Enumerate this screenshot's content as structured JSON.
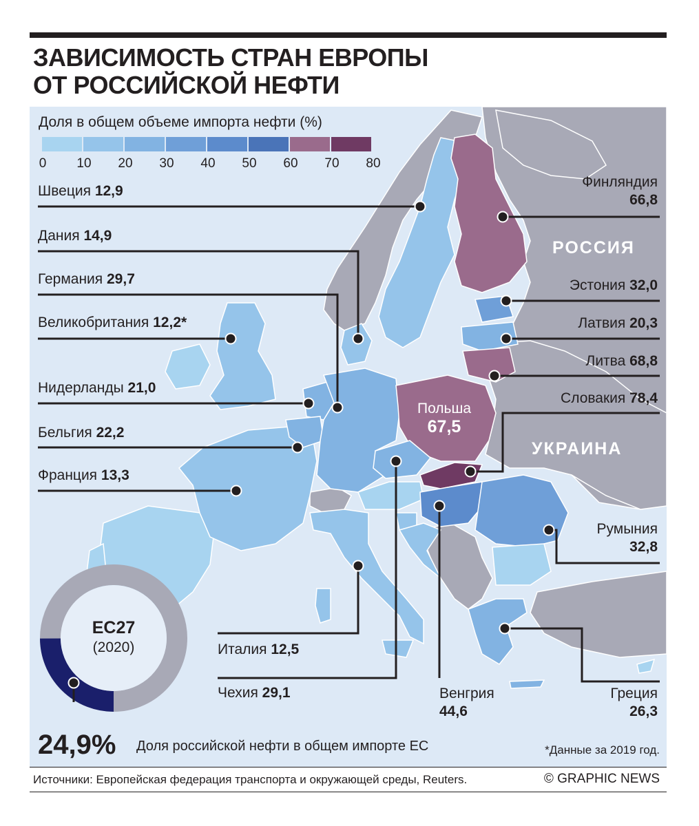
{
  "title_line1": "ЗАВИСИМОСТЬ СТРАН ЕВРОПЫ",
  "title_line2": "ОТ РОССИЙСКОЙ НЕФТИ",
  "legend": {
    "title": "Доля в общем объеме импорта нефти (%)",
    "ticks": [
      "0",
      "10",
      "20",
      "30",
      "40",
      "50",
      "60",
      "70",
      "80"
    ],
    "colors": [
      "#a8d4f0",
      "#95c4ea",
      "#82b3e2",
      "#6f9fd8",
      "#5c8bcc",
      "#4a74b8",
      "#9a6b8c",
      "#6f3a63"
    ]
  },
  "colors": {
    "sea": "#dde9f6",
    "non_eu": "#a8a9b6",
    "border": "#ffffff",
    "leader": "#231f20"
  },
  "regions": {
    "russia": "РОССИЯ",
    "ukraine": "УКРАИНА"
  },
  "countries": {
    "sweden": {
      "name": "Швеция",
      "value": "12,9"
    },
    "denmark": {
      "name": "Дания",
      "value": "14,9"
    },
    "germany": {
      "name": "Германия",
      "value": "29,7"
    },
    "uk": {
      "name": "Великобритания",
      "value": "12,2*"
    },
    "netherlands": {
      "name": "Нидерланды",
      "value": "21,0"
    },
    "belgium": {
      "name": "Бельгия",
      "value": "22,2"
    },
    "france": {
      "name": "Франция",
      "value": "13,3"
    },
    "finland": {
      "name": "Финляндия",
      "value": "66,8"
    },
    "estonia": {
      "name": "Эстония",
      "value": "32,0"
    },
    "latvia": {
      "name": "Латвия",
      "value": "20,3"
    },
    "lithuania": {
      "name": "Литва",
      "value": "68,8"
    },
    "slovakia": {
      "name": "Словакия",
      "value": "78,4"
    },
    "poland": {
      "name": "Польша",
      "value": "67,5"
    },
    "romania": {
      "name": "Румыния",
      "value": "32,8"
    },
    "italy": {
      "name": "Италия",
      "value": "12,5"
    },
    "czechia": {
      "name": "Чехия",
      "value": "29,1"
    },
    "hungary": {
      "name": "Венгрия",
      "value": "44,6"
    },
    "greece": {
      "name": "Греция",
      "value": "26,3"
    }
  },
  "eu_summary": {
    "name": "ЕС27",
    "year": "(2020)",
    "share_value": 24.9,
    "share_text": "24,9%",
    "description": "Доля российской нефти в общем импорте ЕС",
    "colors": {
      "russian": "#1a1f6b",
      "other": "#a8a9b6"
    }
  },
  "footnote": "*Данные за 2019 год.",
  "source": "Источники: Европейская федерация транспорта и окружающей среды, Reuters.",
  "credit": "© GRAPHIC NEWS"
}
